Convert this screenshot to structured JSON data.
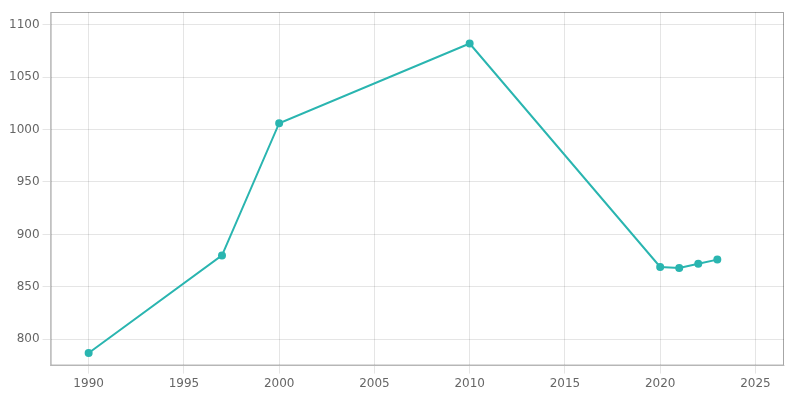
{
  "chart_data": {
    "type": "line",
    "x": [
      1990,
      1997,
      2000,
      2010,
      2020,
      2021,
      2022,
      2023
    ],
    "values": [
      787,
      880,
      1006,
      1082,
      869,
      868,
      872,
      876
    ],
    "color": "#2ab5b0",
    "marker": "circle",
    "xlim": [
      1988,
      2026.5
    ],
    "ylim": [
      775,
      1112
    ],
    "xticks": [
      1990,
      1995,
      2000,
      2005,
      2010,
      2015,
      2020,
      2025
    ],
    "yticks": [
      800,
      850,
      900,
      950,
      1000,
      1050,
      1100
    ],
    "grid": true
  }
}
